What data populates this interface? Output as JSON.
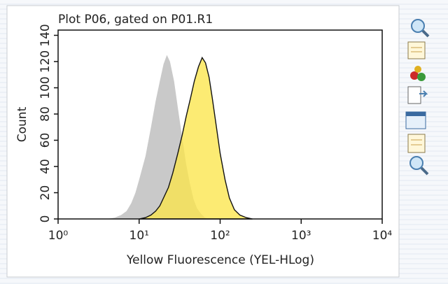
{
  "chart_data": {
    "type": "histogram-overlay",
    "title": "Plot P06, gated on P01.R1",
    "x_label": "Yellow Fluorescence (YEL-HLog)",
    "y_label": "Count",
    "x_log": true,
    "xlim": [
      1,
      10000
    ],
    "xticks": [
      {
        "value": 1,
        "label": "10⁰"
      },
      {
        "value": 10,
        "label": "10¹"
      },
      {
        "value": 100,
        "label": "10²"
      },
      {
        "value": 1000,
        "label": "10³"
      },
      {
        "value": 10000,
        "label": "10⁴"
      }
    ],
    "ylim": [
      0,
      144
    ],
    "yticks": [
      0,
      20,
      40,
      60,
      80,
      100,
      120,
      140
    ],
    "series": [
      {
        "color": "#c9c9c9",
        "outline": false,
        "x": [
          4,
          5,
          6,
          7,
          8,
          9,
          10,
          12,
          14,
          16,
          18,
          20,
          22,
          24,
          27,
          30,
          34,
          38,
          42,
          47,
          52,
          58,
          65,
          75
        ],
        "values": [
          0,
          1,
          3,
          6,
          12,
          20,
          30,
          48,
          70,
          90,
          105,
          118,
          125,
          120,
          105,
          85,
          62,
          42,
          28,
          15,
          8,
          4,
          1,
          0
        ]
      },
      {
        "color": "#fbe54c",
        "outline": true,
        "x": [
          10,
          12,
          14,
          16,
          18,
          20,
          23,
          26,
          30,
          34,
          38,
          43,
          48,
          54,
          60,
          66,
          73,
          80,
          90,
          100,
          115,
          130,
          150,
          175,
          210,
          250
        ],
        "values": [
          0,
          1,
          3,
          6,
          10,
          16,
          24,
          35,
          50,
          64,
          78,
          92,
          105,
          116,
          123,
          119,
          108,
          92,
          70,
          50,
          30,
          16,
          7,
          3,
          1,
          0
        ]
      }
    ]
  }
}
